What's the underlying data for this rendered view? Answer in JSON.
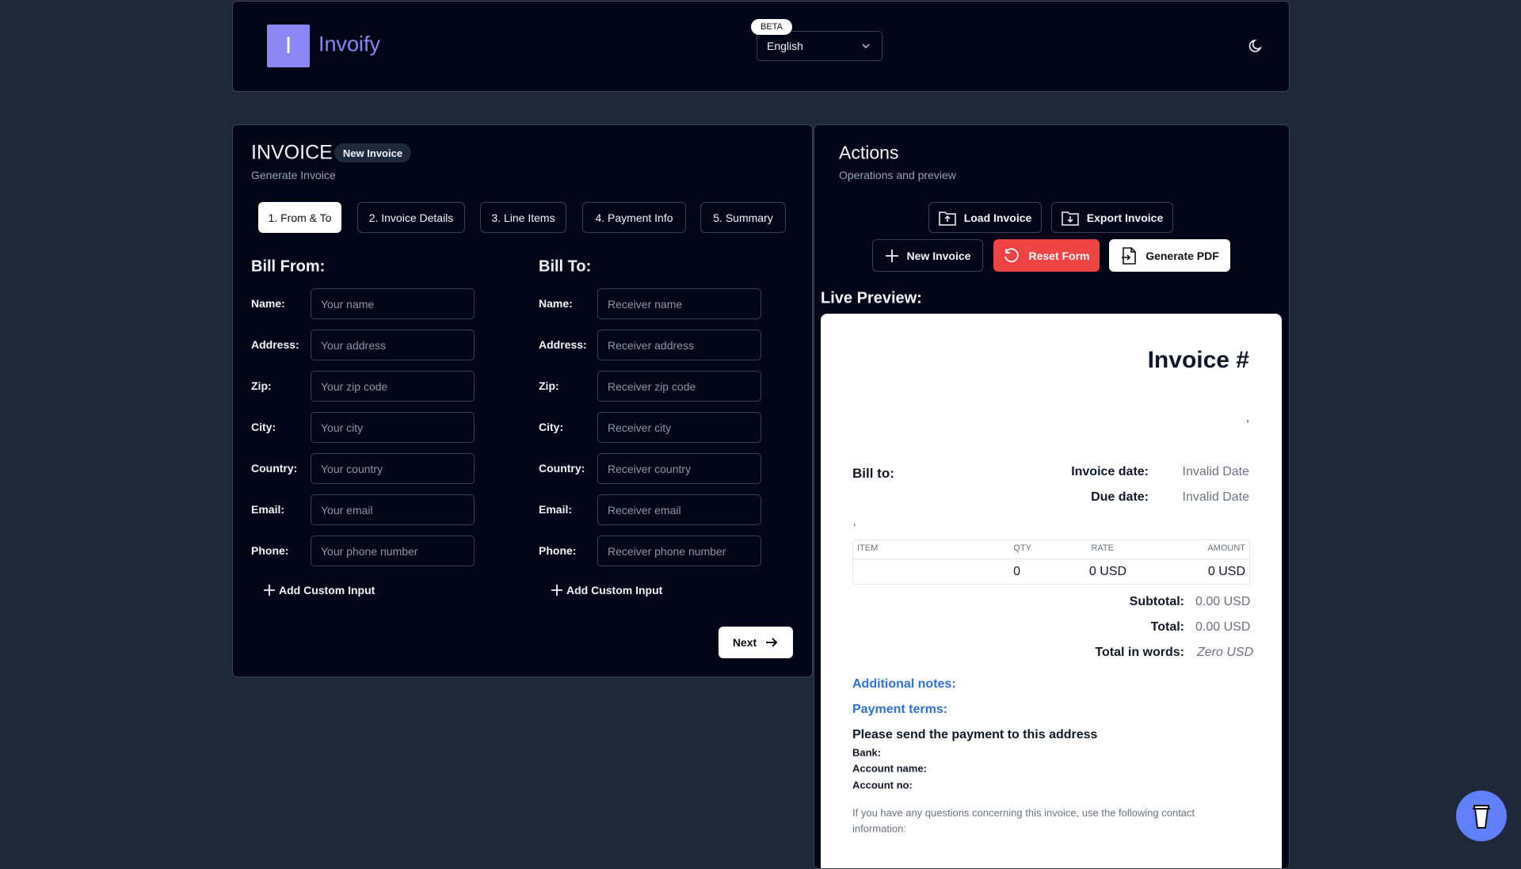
{
  "header": {
    "logo_letter": "I",
    "app_name": "Invoify",
    "beta": "BETA",
    "language": "English"
  },
  "form": {
    "title": "INVOICE",
    "badge": "New Invoice",
    "subtitle": "Generate Invoice",
    "tabs": [
      "1. From & To",
      "2. Invoice Details",
      "3. Line Items",
      "4. Payment Info",
      "5. Summary"
    ],
    "bill_from": {
      "heading": "Bill From:",
      "fields": [
        {
          "label": "Name:",
          "placeholder": "Your name"
        },
        {
          "label": "Address:",
          "placeholder": "Your address"
        },
        {
          "label": "Zip:",
          "placeholder": "Your zip code"
        },
        {
          "label": "City:",
          "placeholder": "Your city"
        },
        {
          "label": "Country:",
          "placeholder": "Your country"
        },
        {
          "label": "Email:",
          "placeholder": "Your email"
        },
        {
          "label": "Phone:",
          "placeholder": "Your phone number"
        }
      ],
      "add_custom": "Add Custom Input"
    },
    "bill_to": {
      "heading": "Bill To:",
      "fields": [
        {
          "label": "Name:",
          "placeholder": "Receiver name"
        },
        {
          "label": "Address:",
          "placeholder": "Receiver address"
        },
        {
          "label": "Zip:",
          "placeholder": "Receiver zip code"
        },
        {
          "label": "City:",
          "placeholder": "Receiver city"
        },
        {
          "label": "Country:",
          "placeholder": "Receiver country"
        },
        {
          "label": "Email:",
          "placeholder": "Receiver email"
        },
        {
          "label": "Phone:",
          "placeholder": "Receiver phone number"
        }
      ],
      "add_custom": "Add Custom Input"
    },
    "next": "Next"
  },
  "actions": {
    "title": "Actions",
    "subtitle": "Operations and preview",
    "load": "Load Invoice",
    "export": "Export Invoice",
    "new": "New Invoice",
    "reset": "Reset Form",
    "generate": "Generate PDF"
  },
  "preview": {
    "heading": "Live Preview:",
    "invoice_title": "Invoice #",
    "sender_line": ",",
    "bill_to": "Bill to:",
    "receiver_line": ",",
    "invoice_date_label": "Invoice date:",
    "invoice_date": "Invalid Date",
    "due_date_label": "Due date:",
    "due_date": "Invalid Date",
    "table": {
      "headers": [
        "ITEM",
        "QTY",
        "RATE",
        "AMOUNT"
      ],
      "row": [
        0,
        "0 USD",
        "0 USD"
      ]
    },
    "subtotal_label": "Subtotal:",
    "subtotal": "0.00 USD",
    "total_label": "Total:",
    "total": "0.00 USD",
    "words_label": "Total in words:",
    "words": "Zero USD",
    "notes": "Additional notes:",
    "terms": "Payment terms:",
    "send": "Please send the payment to this address",
    "bank": "Bank:",
    "account_name": "Account name:",
    "account_no": "Account no:",
    "questions": [
      "If you have any questions concerning this invoice, use the following contact",
      "information:"
    ]
  }
}
